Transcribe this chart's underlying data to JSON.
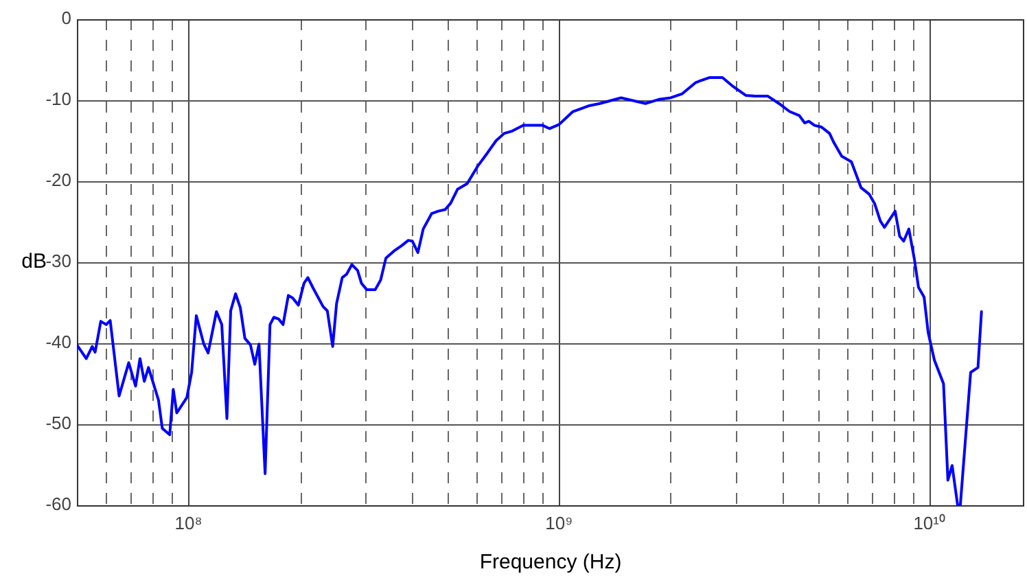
{
  "chart_data": {
    "type": "line",
    "xlabel": "Frequency (Hz)",
    "ylabel": "dB",
    "log": "x",
    "grid": true,
    "legend": false,
    "marker": "none",
    "line_style": "solid",
    "xlim": [
      50000000.0,
      18000000000.0
    ],
    "ylim": [
      -60,
      0
    ],
    "xticks": [
      {
        "value": 60000000.0,
        "label": null
      },
      {
        "value": 70000000.0,
        "label": null
      },
      {
        "value": 80000000.0,
        "label": null
      },
      {
        "value": 90000000.0,
        "label": null
      },
      {
        "value": 100000000.0,
        "label": "10⁸"
      },
      {
        "value": 200000000.0,
        "label": null
      },
      {
        "value": 300000000.0,
        "label": null
      },
      {
        "value": 400000000.0,
        "label": null
      },
      {
        "value": 500000000.0,
        "label": null
      },
      {
        "value": 600000000.0,
        "label": null
      },
      {
        "value": 700000000.0,
        "label": null
      },
      {
        "value": 800000000.0,
        "label": null
      },
      {
        "value": 900000000.0,
        "label": null
      },
      {
        "value": 1000000000.0,
        "label": "10⁹"
      },
      {
        "value": 2000000000.0,
        "label": null
      },
      {
        "value": 3000000000.0,
        "label": null
      },
      {
        "value": 4000000000.0,
        "label": null
      },
      {
        "value": 5000000000.0,
        "label": null
      },
      {
        "value": 6000000000.0,
        "label": null
      },
      {
        "value": 7000000000.0,
        "label": null
      },
      {
        "value": 8000000000.0,
        "label": null
      },
      {
        "value": 9000000000.0,
        "label": null
      },
      {
        "value": 10000000000.0,
        "label": "10¹⁰"
      }
    ],
    "yticks": [
      -60,
      -50,
      -40,
      -30,
      -20,
      -10,
      0
    ],
    "series": [
      {
        "color": "#0000ff",
        "x": [
          50000000.0,
          53000000.0,
          55000000.0,
          56000000.0,
          58000000.0,
          60000000.0,
          61500000.0,
          65000000.0,
          69000000.0,
          72000000.0,
          74000000.0,
          76000000.0,
          78000000.0,
          83000000.0,
          85000000.0,
          89000000.0,
          91000000.0,
          93000000.0,
          99000000.0,
          102000000.0,
          105000000.0,
          110000000.0,
          113000000.0,
          119000000.0,
          123000000.0,
          127000000.0,
          130000000.0,
          134000000.0,
          138000000.0,
          142000000.0,
          147000000.0,
          151000000.0,
          155000000.0,
          161000000.0,
          166000000.0,
          170000000.0,
          175000000.0,
          180000000.0,
          186000000.0,
          191000000.0,
          198000000.0,
          205000000.0,
          210000000.0,
          217000000.0,
          231000000.0,
          237000000.0,
          245000000.0,
          251000000.0,
          260000000.0,
          267000000.0,
          276000000.0,
          286000000.0,
          293000000.0,
          303000000.0,
          319000000.0,
          330000000.0,
          341000000.0,
          359000000.0,
          375000000.0,
          392000000.0,
          402000000.0,
          416000000.0,
          430000000.0,
          453000000.0,
          472000000.0,
          493000000.0,
          510000000.0,
          532000000.0,
          565000000.0,
          604000000.0,
          641000000.0,
          676000000.0,
          711000000.0,
          748000000.0,
          801000000.0,
          903000000.0,
          942000000.0,
          1000000000.0,
          1090000000.0,
          1200000000.0,
          1290000000.0,
          1470000000.0,
          1710000000.0,
          1860000000.0,
          2000000000.0,
          2150000000.0,
          2340000000.0,
          2550000000.0,
          2760000000.0,
          2930000000.0,
          3190000000.0,
          3390000000.0,
          3660000000.0,
          3920000000.0,
          4190000000.0,
          4450000000.0,
          4600000000.0,
          4720000000.0,
          4890000000.0,
          5100000000.0,
          5370000000.0,
          5510000000.0,
          5790000000.0,
          6150000000.0,
          6530000000.0,
          6870000000.0,
          7110000000.0,
          7360000000.0,
          7550000000.0,
          8070000000.0,
          8300000000.0,
          8510000000.0,
          8790000000.0,
          9100000000.0,
          9330000000.0,
          9660000000.0,
          9910000000.0,
          10300000000.0,
          10900000000.0,
          11200000000.0,
          11500000000.0,
          11900000000.0,
          12100000000.0,
          12900000000.0,
          13500000000.0,
          13800000000.0
        ],
        "values": [
          -40.2,
          -41.9,
          -40.4,
          -41.1,
          -37.3,
          -37.7,
          -37.2,
          -46.5,
          -42.4,
          -45.3,
          -41.9,
          -44.7,
          -43.0,
          -47.0,
          -50.5,
          -51.3,
          -45.7,
          -48.6,
          -46.7,
          -43.6,
          -36.6,
          -40.1,
          -41.2,
          -36.1,
          -37.7,
          -49.3,
          -36.0,
          -33.9,
          -35.6,
          -39.4,
          -40.2,
          -42.6,
          -40.1,
          -56.1,
          -37.7,
          -36.8,
          -37.0,
          -37.7,
          -34.1,
          -34.4,
          -35.3,
          -32.6,
          -31.9,
          -33.2,
          -35.5,
          -36.0,
          -40.4,
          -35.1,
          -31.9,
          -31.5,
          -30.3,
          -31.0,
          -32.6,
          -33.4,
          -33.4,
          -32.2,
          -29.5,
          -28.6,
          -28.0,
          -27.3,
          -27.4,
          -28.8,
          -25.9,
          -24.0,
          -23.7,
          -23.5,
          -22.7,
          -21.0,
          -20.3,
          -18.1,
          -16.5,
          -15.0,
          -14.1,
          -13.8,
          -13.1,
          -13.1,
          -13.5,
          -13.0,
          -11.4,
          -10.7,
          -10.4,
          -9.7,
          -10.4,
          -9.9,
          -9.7,
          -9.2,
          -7.8,
          -7.2,
          -7.2,
          -8.2,
          -9.4,
          -9.5,
          -9.5,
          -10.4,
          -11.4,
          -11.9,
          -12.8,
          -12.6,
          -13.1,
          -13.3,
          -14.1,
          -15.2,
          -16.9,
          -17.6,
          -20.8,
          -21.6,
          -22.8,
          -24.9,
          -25.7,
          -23.7,
          -26.8,
          -27.4,
          -25.9,
          -29.7,
          -33.1,
          -34.3,
          -38.7,
          -42.1,
          -45.0,
          -56.9,
          -55.1,
          -60,
          -60,
          -43.6,
          -43.0,
          -36.1
        ]
      }
    ]
  }
}
